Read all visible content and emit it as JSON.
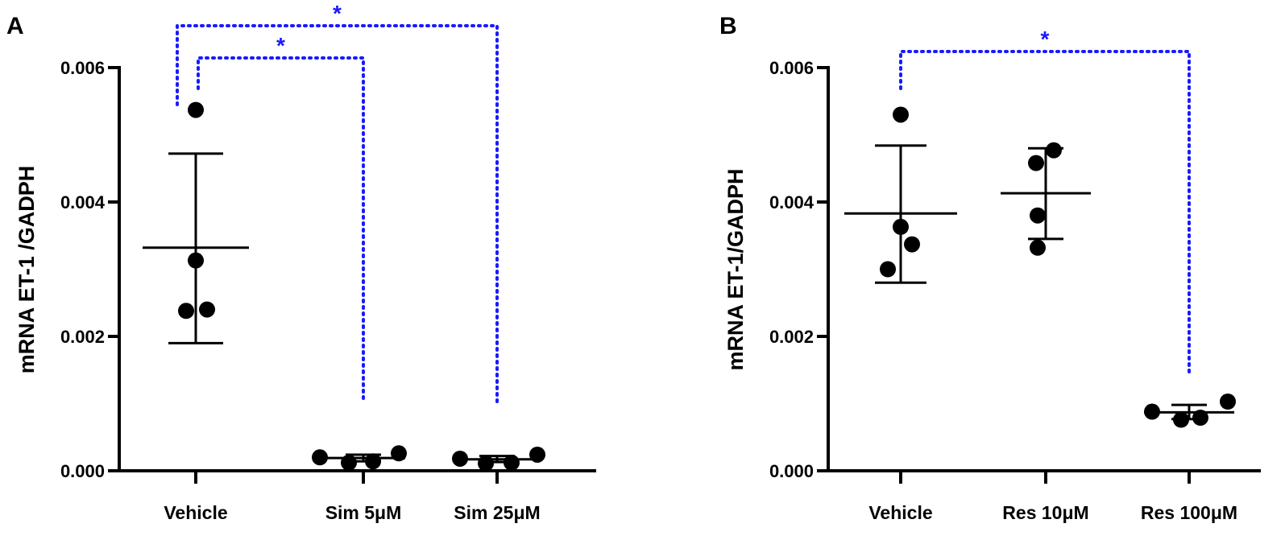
{
  "colors": {
    "ink": "#000000",
    "significance": "#1a1aff"
  },
  "chart_data": [
    {
      "panel": "A",
      "type": "scatter",
      "ylabel": "mRNA ET-1 /GADPH",
      "xlabel": "",
      "ylim": [
        0,
        0.006
      ],
      "yticks": [
        "0.000",
        "0.002",
        "0.004",
        "0.006"
      ],
      "categories": [
        "Vehicle",
        "Sim 5μM",
        "Sim 25μM"
      ],
      "groups": [
        {
          "name": "Vehicle",
          "points": [
            0.00537,
            0.00313,
            0.00238,
            0.0024
          ],
          "mean": 0.00332,
          "sd_low": 0.0019,
          "sd_high": 0.00472
        },
        {
          "name": "Sim 5μM",
          "points": [
            0.0002,
            0.00012,
            0.00014,
            0.00026
          ],
          "mean": 0.00019,
          "sd_low": 0.00014,
          "sd_high": 0.00024
        },
        {
          "name": "Sim 25μM",
          "points": [
            0.00018,
            0.00011,
            0.00012,
            0.00024
          ],
          "mean": 0.00017,
          "sd_low": 0.00013,
          "sd_high": 0.00022
        }
      ],
      "significance": [
        {
          "from": "Vehicle",
          "to": "Sim 5μM",
          "label": "*"
        },
        {
          "from": "Vehicle",
          "to": "Sim 25μM",
          "label": "*"
        }
      ]
    },
    {
      "panel": "B",
      "type": "scatter",
      "ylabel": "mRNA ET-1/GADPH",
      "xlabel": "",
      "ylim": [
        0,
        0.006
      ],
      "yticks": [
        "0.000",
        "0.002",
        "0.004",
        "0.006"
      ],
      "categories": [
        "Vehicle",
        "Res 10μM",
        "Res 100μM"
      ],
      "groups": [
        {
          "name": "Vehicle",
          "points": [
            0.0053,
            0.00363,
            0.00337,
            0.003
          ],
          "mean": 0.00383,
          "sd_low": 0.0028,
          "sd_high": 0.00484
        },
        {
          "name": "Res 10μM",
          "points": [
            0.00477,
            0.00458,
            0.0038,
            0.00332
          ],
          "mean": 0.00413,
          "sd_low": 0.00345,
          "sd_high": 0.0048
        },
        {
          "name": "Res 100μM",
          "points": [
            0.00088,
            0.00076,
            0.00079,
            0.00103
          ],
          "mean": 0.00087,
          "sd_low": 0.00077,
          "sd_high": 0.00098
        }
      ],
      "significance": [
        {
          "from": "Vehicle",
          "to": "Res 100μM",
          "label": "*"
        }
      ]
    }
  ]
}
